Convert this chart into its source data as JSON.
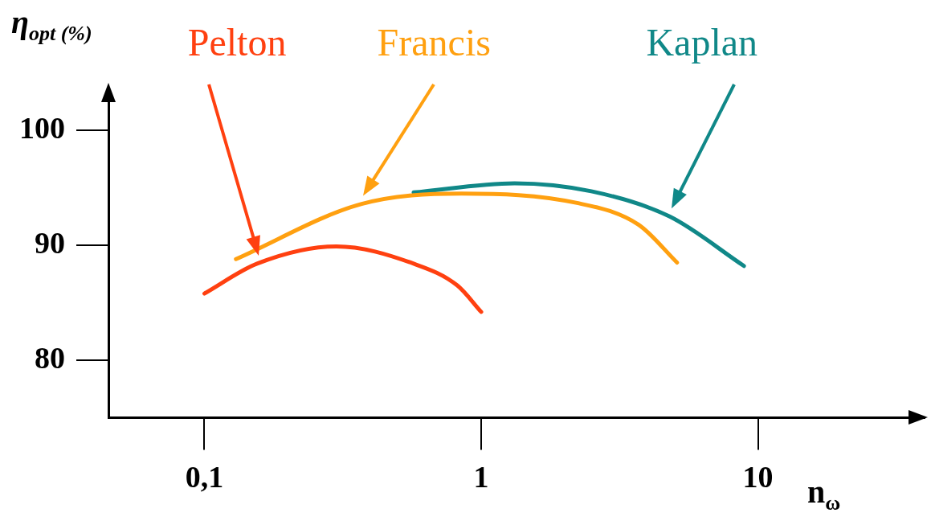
{
  "chart_data": {
    "type": "line",
    "xlabel": "n$_{ω}$",
    "ylabel": "η$_{opt (%)}$",
    "log": "x",
    "xlim": [
      0.045,
      40
    ],
    "ylim": [
      75,
      102.6
    ],
    "xticks": [
      {
        "value": 0.1,
        "label": "0,1"
      },
      1,
      10
    ],
    "yticks": [
      80,
      90,
      100
    ],
    "grid": false,
    "legend": false,
    "marker": "none",
    "line_style": "solid",
    "series": [
      {
        "name": "Pelton",
        "color": "#ff4010",
        "x": [
          0.1,
          0.155,
          0.3,
          0.57,
          0.82,
          1
        ],
        "values": [
          85.8,
          88.4,
          89.9,
          88.4,
          86.5,
          84.2
        ]
      },
      {
        "name": "Francis",
        "color": "#ffa010",
        "x": [
          0.13,
          0.37,
          0.85,
          2.2,
          3.7,
          5.1
        ],
        "values": [
          88.8,
          93.6,
          94.5,
          93.7,
          91.8,
          88.5
        ]
      },
      {
        "name": "Kaplan",
        "color": "#108888",
        "x": [
          0.57,
          1.32,
          2.5,
          4.8,
          8.9
        ],
        "values": [
          94.6,
          95.4,
          94.7,
          92.5,
          88.2
        ]
      }
    ]
  }
}
